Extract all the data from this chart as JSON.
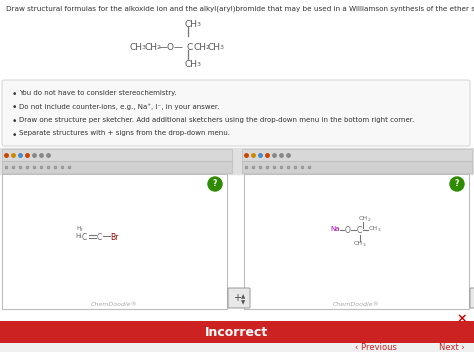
{
  "title_text": "Draw structural formulas for the alkoxide ion and the alkyl(aryl)bromide that may be used in a Williamson synthesis of the ether shown.",
  "background_color": "#f5f5f5",
  "page_bg": "#ffffff",
  "bullet_box_color": "#f8f8f8",
  "bullet_box_border": "#cccccc",
  "bullets": [
    "You do not have to consider stereochemistry.",
    "Do not include counter-ions, e.g., Na⁺, I⁻, in your answer.",
    "Draw one structure per sketcher. Add additional sketchers using the drop-down menu in the bottom right corner.",
    "Separate structures with + signs from the drop-down menu."
  ],
  "green_circle_color": "#2e8b00",
  "chemdoodle_label": "ChemDoodle®",
  "incorrect_bar_color": "#cc2222",
  "incorrect_text": "Incorrect",
  "nav_prev": "‹ Previous",
  "nav_next": "Next ›",
  "nav_color": "#cc2222"
}
